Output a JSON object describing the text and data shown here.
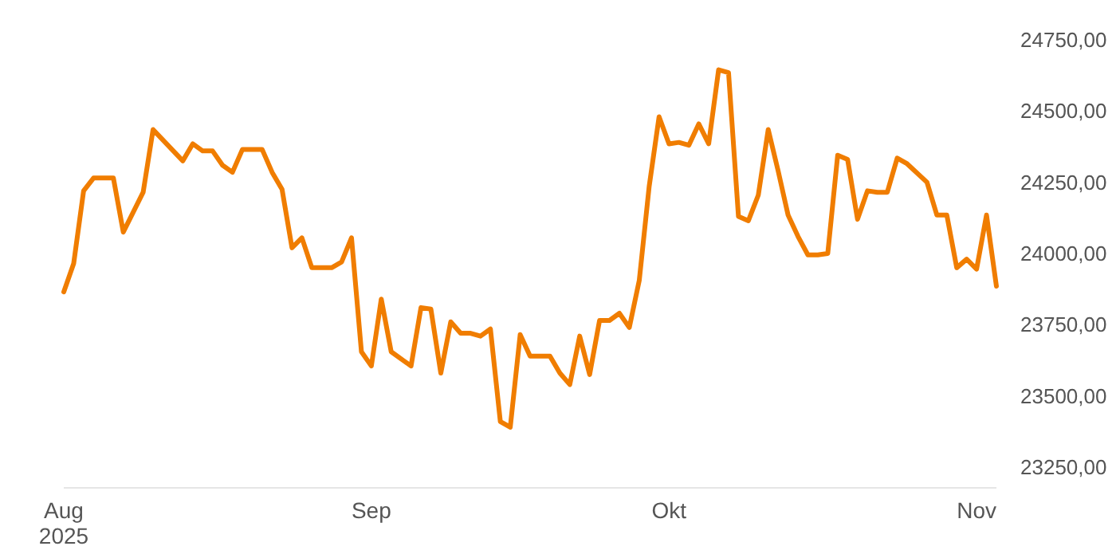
{
  "chart_data": {
    "type": "line",
    "x": [
      "2025-08-01",
      "2025-08-02",
      "2025-08-03",
      "2025-08-04",
      "2025-08-06",
      "2025-08-07",
      "2025-08-09",
      "2025-08-10",
      "2025-08-13",
      "2025-08-14",
      "2025-08-15",
      "2025-08-16",
      "2025-08-17",
      "2025-08-18",
      "2025-08-19",
      "2025-08-21",
      "2025-08-22",
      "2025-08-23",
      "2025-08-24",
      "2025-08-25",
      "2025-08-26",
      "2025-08-28",
      "2025-08-29",
      "2025-08-30",
      "2025-08-31",
      "2025-09-01",
      "2025-09-02",
      "2025-09-03",
      "2025-09-05",
      "2025-09-06",
      "2025-09-07",
      "2025-09-08",
      "2025-09-09",
      "2025-09-10",
      "2025-09-11",
      "2025-09-12",
      "2025-09-13",
      "2025-09-14",
      "2025-09-15",
      "2025-09-16",
      "2025-09-17",
      "2025-09-19",
      "2025-09-20",
      "2025-09-21",
      "2025-09-22",
      "2025-09-23",
      "2025-09-24",
      "2025-09-25",
      "2025-09-26",
      "2025-09-27",
      "2025-09-28",
      "2025-09-29",
      "2025-09-30",
      "2025-10-01",
      "2025-10-02",
      "2025-10-03",
      "2025-10-04",
      "2025-10-05",
      "2025-10-06",
      "2025-10-07",
      "2025-10-08",
      "2025-10-09",
      "2025-10-10",
      "2025-10-11",
      "2025-10-12",
      "2025-10-13",
      "2025-10-14",
      "2025-10-15",
      "2025-10-16",
      "2025-10-17",
      "2025-10-18",
      "2025-10-19",
      "2025-10-20",
      "2025-10-21",
      "2025-10-22",
      "2025-10-23",
      "2025-10-24",
      "2025-10-25",
      "2025-10-27",
      "2025-10-28",
      "2025-10-29",
      "2025-10-30",
      "2025-10-31",
      "2025-11-01",
      "2025-11-02",
      "2025-11-03"
    ],
    "series": [
      {
        "color": "#f07d00",
        "values": [
          23865,
          23965,
          24220,
          24265,
          24265,
          24075,
          24215,
          24435,
          24325,
          24385,
          24360,
          24360,
          24310,
          24285,
          24365,
          24365,
          24285,
          24225,
          24020,
          24055,
          23950,
          23950,
          23970,
          24055,
          23655,
          23605,
          23840,
          23655,
          23605,
          23810,
          23805,
          23580,
          23760,
          23720,
          23720,
          23710,
          23735,
          23410,
          23390,
          23715,
          23640,
          23640,
          23580,
          23540,
          23710,
          23575,
          23765,
          23765,
          23790,
          23740,
          23905,
          24235,
          24480,
          24385,
          24390,
          24380,
          24455,
          24385,
          24645,
          24635,
          24130,
          24115,
          24205,
          24435,
          24290,
          24135,
          24060,
          23995,
          23995,
          24000,
          24345,
          24330,
          24120,
          24220,
          24215,
          24215,
          24335,
          24315,
          24250,
          24135,
          24135,
          23950,
          23980,
          23945,
          24135,
          23885
        ]
      }
    ],
    "xlim": [
      "2025-08-01",
      "2025-11-03"
    ],
    "xticks": [
      {
        "value": "2025-08-01",
        "label": "Aug\n2025"
      },
      {
        "value": "2025-09-01",
        "label": "Sep"
      },
      {
        "value": "2025-10-01",
        "label": "Okt"
      },
      {
        "value": "2025-11-01",
        "label": "Nov"
      }
    ],
    "ylim": [
      23250,
      24750
    ],
    "yticks": [
      {
        "value": 23250,
        "label": "23250,00"
      },
      {
        "value": 23500,
        "label": "23500,00"
      },
      {
        "value": 23750,
        "label": "23750,00"
      },
      {
        "value": 24000,
        "label": "24000,00"
      },
      {
        "value": 24250,
        "label": "24250,00"
      },
      {
        "value": 24500,
        "label": "24500,00"
      },
      {
        "value": 24750,
        "label": "24750,00"
      }
    ],
    "marker": "none",
    "line_style": "solid"
  }
}
